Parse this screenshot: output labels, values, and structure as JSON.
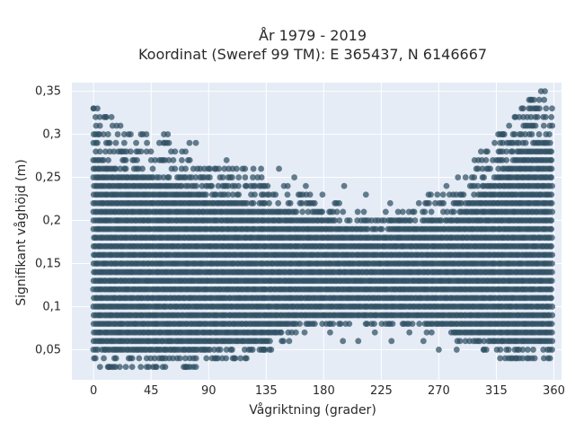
{
  "chart_data": {
    "type": "scatter",
    "title_line1": "År 1979 - 2019",
    "title_line2": "Koordinat (Sweref 99 TM): E 365437, N 6146667",
    "xlabel": "Vågriktning (grader)",
    "ylabel": "Signifikant våghöjd (m)",
    "xlim": [
      -17,
      366
    ],
    "ylim": [
      0.015,
      0.36
    ],
    "x_ticks": [
      0,
      45,
      90,
      135,
      180,
      225,
      270,
      315,
      360
    ],
    "x_tick_labels": [
      "0",
      "45",
      "90",
      "135",
      "180",
      "225",
      "270",
      "315",
      "360"
    ],
    "y_ticks": [
      0.05,
      0.1,
      0.15,
      0.2,
      0.25,
      0.3,
      0.35
    ],
    "y_tick_labels": [
      "0,05",
      "0,1",
      "0,15",
      "0,2",
      "0,25",
      "0,3",
      "0,35"
    ],
    "grid": true,
    "colors": {
      "background": "#e5ecf6",
      "grid": "#ffffff",
      "marker": "#2f4f63"
    },
    "y_step": 0.01,
    "envelope": [
      {
        "x": 0,
        "ymax": 0.33,
        "ymin": 0.04
      },
      {
        "x": 10,
        "ymax": 0.32,
        "ymin": 0.03
      },
      {
        "x": 25,
        "ymax": 0.3,
        "ymin": 0.03
      },
      {
        "x": 45,
        "ymax": 0.3,
        "ymin": 0.03
      },
      {
        "x": 60,
        "ymax": 0.29,
        "ymin": 0.03
      },
      {
        "x": 80,
        "ymax": 0.28,
        "ymin": 0.03
      },
      {
        "x": 100,
        "ymax": 0.26,
        "ymin": 0.04
      },
      {
        "x": 120,
        "ymax": 0.26,
        "ymin": 0.04
      },
      {
        "x": 140,
        "ymax": 0.25,
        "ymin": 0.05
      },
      {
        "x": 160,
        "ymax": 0.24,
        "ymin": 0.07
      },
      {
        "x": 180,
        "ymax": 0.23,
        "ymin": 0.08
      },
      {
        "x": 200,
        "ymax": 0.22,
        "ymin": 0.08
      },
      {
        "x": 225,
        "ymax": 0.21,
        "ymin": 0.08
      },
      {
        "x": 245,
        "ymax": 0.22,
        "ymin": 0.08
      },
      {
        "x": 260,
        "ymax": 0.23,
        "ymin": 0.07
      },
      {
        "x": 280,
        "ymax": 0.23,
        "ymin": 0.06
      },
      {
        "x": 300,
        "ymax": 0.27,
        "ymin": 0.05
      },
      {
        "x": 320,
        "ymax": 0.31,
        "ymin": 0.04
      },
      {
        "x": 340,
        "ymax": 0.34,
        "ymin": 0.04
      },
      {
        "x": 350,
        "ymax": 0.35,
        "ymin": 0.04
      },
      {
        "x": 360,
        "ymax": 0.33,
        "ymin": 0.04
      }
    ],
    "outliers": [
      {
        "x": 0,
        "y": 0.33
      },
      {
        "x": 3,
        "y": 0.33
      },
      {
        "x": 10,
        "y": 0.32
      },
      {
        "x": 14,
        "y": 0.32
      },
      {
        "x": 18,
        "y": 0.31
      },
      {
        "x": 21,
        "y": 0.31
      },
      {
        "x": 55,
        "y": 0.3
      },
      {
        "x": 58,
        "y": 0.3
      },
      {
        "x": 75,
        "y": 0.29
      },
      {
        "x": 80,
        "y": 0.29
      },
      {
        "x": 104,
        "y": 0.27
      },
      {
        "x": 125,
        "y": 0.26
      },
      {
        "x": 131,
        "y": 0.26
      },
      {
        "x": 145,
        "y": 0.26
      },
      {
        "x": 157,
        "y": 0.25
      },
      {
        "x": 166,
        "y": 0.24
      },
      {
        "x": 196,
        "y": 0.24
      },
      {
        "x": 213,
        "y": 0.23
      },
      {
        "x": 232,
        "y": 0.22
      },
      {
        "x": 262,
        "y": 0.23
      },
      {
        "x": 276,
        "y": 0.24
      },
      {
        "x": 285,
        "y": 0.25
      },
      {
        "x": 298,
        "y": 0.27
      },
      {
        "x": 303,
        "y": 0.28
      },
      {
        "x": 308,
        "y": 0.28
      },
      {
        "x": 320,
        "y": 0.3
      },
      {
        "x": 325,
        "y": 0.31
      },
      {
        "x": 330,
        "y": 0.32
      },
      {
        "x": 336,
        "y": 0.33
      },
      {
        "x": 342,
        "y": 0.34
      },
      {
        "x": 350,
        "y": 0.35
      },
      {
        "x": 353,
        "y": 0.35
      },
      {
        "x": 5,
        "y": 0.03
      },
      {
        "x": 12,
        "y": 0.03
      },
      {
        "x": 72,
        "y": 0.03
      },
      {
        "x": 80,
        "y": 0.03
      },
      {
        "x": 110,
        "y": 0.04
      },
      {
        "x": 133,
        "y": 0.05
      },
      {
        "x": 153,
        "y": 0.06
      },
      {
        "x": 165,
        "y": 0.07
      },
      {
        "x": 173,
        "y": 0.08
      },
      {
        "x": 185,
        "y": 0.07
      },
      {
        "x": 195,
        "y": 0.06
      },
      {
        "x": 207,
        "y": 0.06
      },
      {
        "x": 220,
        "y": 0.07
      },
      {
        "x": 233,
        "y": 0.06
      },
      {
        "x": 247,
        "y": 0.07
      },
      {
        "x": 258,
        "y": 0.06
      },
      {
        "x": 270,
        "y": 0.05
      },
      {
        "x": 284,
        "y": 0.05
      },
      {
        "x": 305,
        "y": 0.05
      },
      {
        "x": 318,
        "y": 0.04
      },
      {
        "x": 330,
        "y": 0.04
      },
      {
        "x": 345,
        "y": 0.04
      },
      {
        "x": 357,
        "y": 0.04
      }
    ]
  }
}
